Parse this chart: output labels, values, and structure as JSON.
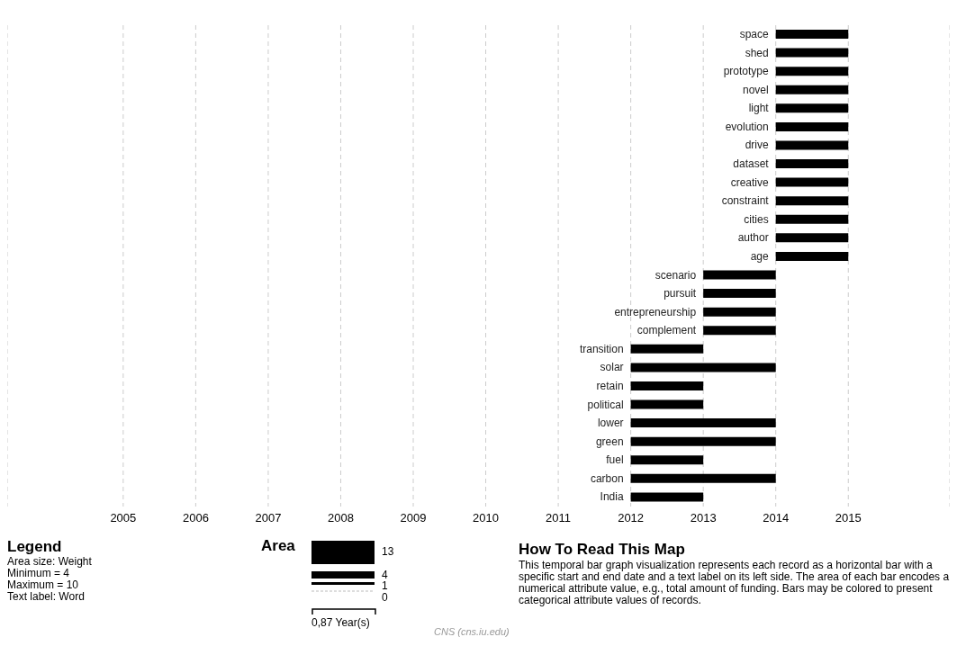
{
  "chart_data": {
    "type": "bar",
    "orientation": "horizontal",
    "categories": [
      "space",
      "shed",
      "prototype",
      "novel",
      "light",
      "evolution",
      "drive",
      "dataset",
      "creative",
      "constraint",
      "cities",
      "author",
      "age",
      "scenario",
      "pursuit",
      "entrepreneurship",
      "complement",
      "transition",
      "solar",
      "retain",
      "political",
      "lower",
      "green",
      "fuel",
      "carbon",
      "India"
    ],
    "base": [
      2014,
      2014,
      2014,
      2014,
      2014,
      2014,
      2014,
      2014,
      2014,
      2014,
      2014,
      2014,
      2014,
      2013,
      2013,
      2013,
      2013,
      2012,
      2012,
      2012,
      2012,
      2012,
      2012,
      2012,
      2012,
      2012
    ],
    "values": [
      1,
      1,
      1,
      1,
      1,
      1,
      1,
      1,
      1,
      1,
      1,
      1,
      1,
      1,
      1,
      1,
      1,
      1,
      2,
      1,
      1,
      2,
      2,
      1,
      2,
      1
    ],
    "color": "#000000",
    "xlim": [
      2003.4,
      2016.4
    ],
    "xticks": [
      2005,
      2006,
      2007,
      2008,
      2009,
      2010,
      2011,
      2012,
      2013,
      2014,
      2015
    ],
    "grid": "x",
    "annotations": [
      "Legend",
      "Area size: Weight",
      "Minimum = 4",
      "Maximum = 10",
      "Text label: Word",
      "Area",
      "13",
      "4",
      "1",
      "0",
      "0,87 Year(s)",
      "How To Read This Map",
      "This temporal bar graph visualization represents each record as a horizontal bar with a specific start and end date and a text label on its left side. The area of each bar encodes a numerical attribute value, e.g., total amount of funding. Bars may be colored to present categorical attribute values of records.",
      "CNS (cns.iu.edu)"
    ]
  }
}
